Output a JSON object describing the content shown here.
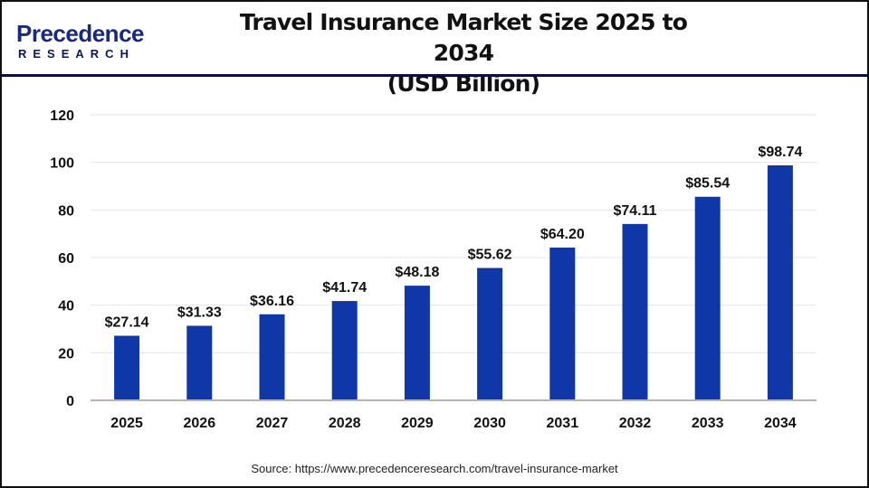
{
  "logo": {
    "text_top": "Precedence",
    "text_bottom": "RESEARCH"
  },
  "source": "Source: https://www.precedenceresearch.com/travel-insurance-market",
  "chart_data": {
    "type": "bar",
    "title": "Travel Insurance Market Size 2025 to 2034",
    "subtitle": "(USD Billion)",
    "xlabel": "",
    "ylabel": "",
    "ylim": [
      0,
      120
    ],
    "yticks": [
      0,
      20,
      40,
      60,
      80,
      100,
      120
    ],
    "grid": true,
    "bar_color": "#0f37a8",
    "categories": [
      "2025",
      "2026",
      "2027",
      "2028",
      "2029",
      "2030",
      "2031",
      "2032",
      "2033",
      "2034"
    ],
    "values": [
      27.14,
      31.33,
      36.16,
      41.74,
      48.18,
      55.62,
      64.2,
      74.11,
      85.54,
      98.74
    ],
    "labels": [
      "$27.14",
      "$31.33",
      "$36.16",
      "$41.74",
      "$48.18",
      "$55.62",
      "$64.20",
      "$74.11",
      "$85.54",
      "$98.74"
    ]
  }
}
